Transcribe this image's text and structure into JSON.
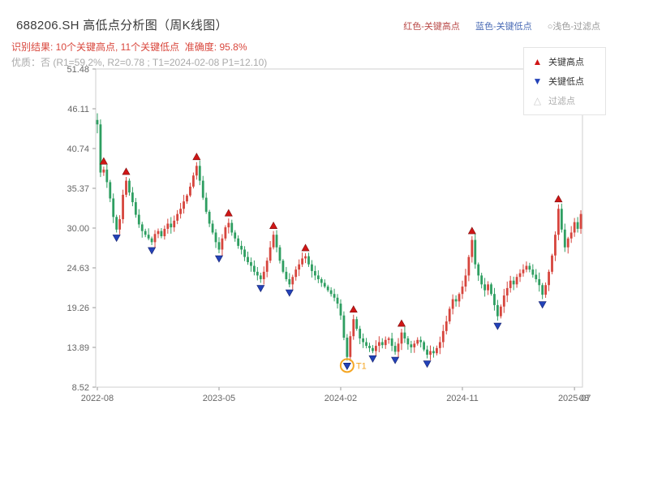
{
  "header": {
    "title": "688206.SH 高低点分析图（周K线图）",
    "legend_inline": [
      {
        "label": "红色-关键高点",
        "color": "#b94a48"
      },
      {
        "label": "蓝色-关键低点",
        "color": "#4a6bb5"
      },
      {
        "label": "○浅色-过滤点",
        "color": "#999999"
      }
    ],
    "result_line": "识别结果: 10个关键高点, 11个关键低点  准确度: 95.8%",
    "quality_line": "优质：否 (R1=59.2%, R2=0.78 ; T1=2024-02-08 P1=12.10)"
  },
  "legend_box": {
    "items": [
      {
        "glyph": "▲",
        "label": "关键高点",
        "color": "#d01616",
        "text_color": "#333333"
      },
      {
        "glyph": "▼",
        "label": "关键低点",
        "color": "#2342b8",
        "text_color": "#333333"
      },
      {
        "glyph": "△",
        "label": "过滤点",
        "color": "#cccccc",
        "text_color": "#aaaaaa"
      }
    ]
  },
  "chart_data": {
    "type": "candlestick",
    "symbol": "688206.SH",
    "interval": "weekly",
    "title": "688206.SH 高低点分析图（周K线图）",
    "xlabel": "",
    "ylabel": "",
    "legend_position": "top-right",
    "grid": false,
    "ylim": [
      8.52,
      51.48
    ],
    "y_ticks": [
      "51.48",
      "46.11",
      "40.74",
      "35.37",
      "30.00",
      "24.63",
      "19.26",
      "13.89",
      "8.52"
    ],
    "x_ticks": [
      {
        "label": "2022-08",
        "index": 0
      },
      {
        "label": "2023-05",
        "index": 38
      },
      {
        "label": "2024-02",
        "index": 76
      },
      {
        "label": "2024-11",
        "index": 114
      },
      {
        "label": "2025-07",
        "index": 149
      },
      {
        "label": "08",
        "index": 152
      }
    ],
    "first_candle": {
      "open": 44.6,
      "high": 45.5,
      "low": 42.8
    },
    "closes": [
      44.0,
      37.5,
      37.9,
      36.2,
      34.0,
      31.5,
      29.8,
      31.2,
      34.5,
      36.4,
      34.8,
      33.5,
      31.8,
      30.5,
      29.6,
      29.1,
      28.6,
      28.1,
      29.2,
      29.6,
      28.9,
      29.9,
      30.6,
      30.1,
      31.0,
      31.9,
      32.6,
      33.6,
      34.4,
      35.6,
      37.1,
      38.4,
      36.4,
      34.1,
      32.2,
      30.6,
      29.4,
      28.1,
      27.1,
      28.6,
      30.1,
      30.7,
      29.4,
      28.6,
      27.6,
      27.1,
      26.1,
      25.4,
      24.9,
      24.1,
      23.6,
      23.1,
      24.1,
      25.6,
      27.4,
      29.1,
      27.4,
      25.6,
      24.1,
      23.1,
      22.4,
      23.4,
      24.4,
      25.1,
      25.9,
      26.2,
      25.1,
      24.2,
      23.6,
      23.1,
      22.6,
      22.1,
      21.6,
      21.1,
      20.6,
      19.8,
      18.2,
      15.2,
      12.6,
      15.4,
      17.7,
      16.4,
      15.1,
      14.6,
      14.1,
      13.8,
      13.4,
      14.1,
      14.6,
      14.2,
      14.9,
      15.1,
      14.1,
      13.3,
      14.4,
      15.9,
      15.1,
      14.3,
      13.9,
      14.4,
      14.9,
      14.6,
      13.6,
      12.9,
      13.4,
      13.1,
      13.8,
      14.6,
      16.1,
      17.4,
      19.1,
      20.4,
      20.1,
      21.1,
      22.1,
      23.6,
      26.1,
      28.4,
      25.1,
      23.6,
      22.4,
      21.6,
      22.4,
      21.1,
      19.6,
      18.1,
      19.4,
      20.9,
      21.9,
      22.9,
      22.4,
      23.4,
      23.9,
      24.4,
      24.9,
      24.4,
      23.7,
      23.1,
      22.3,
      21.0,
      22.3,
      24.1,
      26.3,
      29.1,
      32.6,
      29.8,
      27.4,
      28.6,
      29.4,
      30.8,
      29.9,
      31.9
    ],
    "key_highs": [
      {
        "index": 2,
        "price": 38.3
      },
      {
        "index": 9,
        "price": 36.9
      },
      {
        "index": 31,
        "price": 38.9
      },
      {
        "index": 41,
        "price": 31.3
      },
      {
        "index": 55,
        "price": 29.6
      },
      {
        "index": 65,
        "price": 26.6
      },
      {
        "index": 80,
        "price": 18.3
      },
      {
        "index": 95,
        "price": 16.4
      },
      {
        "index": 117,
        "price": 28.9
      },
      {
        "index": 144,
        "price": 33.2
      }
    ],
    "key_lows": [
      {
        "index": 6,
        "price": 29.4
      },
      {
        "index": 17,
        "price": 27.7
      },
      {
        "index": 38,
        "price": 26.6
      },
      {
        "index": 51,
        "price": 22.6
      },
      {
        "index": 60,
        "price": 22.0
      },
      {
        "index": 78,
        "price": 12.1
      },
      {
        "index": 86,
        "price": 13.1
      },
      {
        "index": 93,
        "price": 12.9
      },
      {
        "index": 103,
        "price": 12.4
      },
      {
        "index": 125,
        "price": 17.5
      },
      {
        "index": 139,
        "price": 20.4
      }
    ],
    "filter_points": [
      {
        "index": 78,
        "price": 12.1,
        "label": "T1"
      }
    ],
    "colors": {
      "up": "#d6453d",
      "down": "#2e9e61",
      "key_high": "#d01616",
      "key_low": "#2342b8",
      "filter": "#f5a623",
      "axis": "#cfcfcf",
      "tick_text": "#666666"
    }
  }
}
